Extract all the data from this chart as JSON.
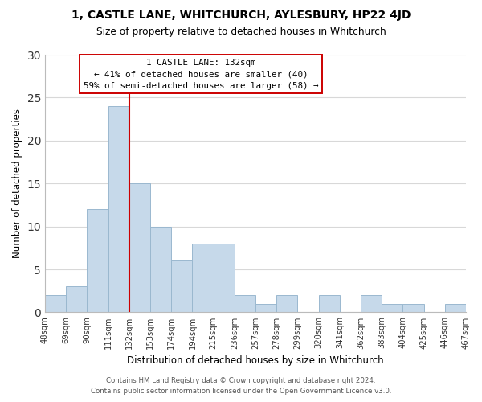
{
  "title_line1": "1, CASTLE LANE, WHITCHURCH, AYLESBURY, HP22 4JD",
  "title_line2": "Size of property relative to detached houses in Whitchurch",
  "xlabel": "Distribution of detached houses by size in Whitchurch",
  "ylabel": "Number of detached properties",
  "tick_labels": [
    "48sqm",
    "69sqm",
    "90sqm",
    "111sqm",
    "132sqm",
    "153sqm",
    "174sqm",
    "194sqm",
    "215sqm",
    "236sqm",
    "257sqm",
    "278sqm",
    "299sqm",
    "320sqm",
    "341sqm",
    "362sqm",
    "383sqm",
    "404sqm",
    "425sqm",
    "446sqm",
    "467sqm"
  ],
  "bar_values": [
    2,
    3,
    12,
    24,
    15,
    10,
    6,
    8,
    8,
    2,
    1,
    2,
    0,
    2,
    0,
    2,
    1,
    1,
    0,
    1
  ],
  "bar_color": "#c6d9ea",
  "bar_edge_color": "#9ab8cf",
  "marker_tick_index": 4,
  "marker_color": "#cc0000",
  "ylim": [
    0,
    30
  ],
  "yticks": [
    0,
    5,
    10,
    15,
    20,
    25,
    30
  ],
  "annotation_line1": "1 CASTLE LANE: 132sqm",
  "annotation_line2": "← 41% of detached houses are smaller (40)",
  "annotation_line3": "59% of semi-detached houses are larger (58) →",
  "footer_line1": "Contains HM Land Registry data © Crown copyright and database right 2024.",
  "footer_line2": "Contains public sector information licensed under the Open Government Licence v3.0.",
  "bg_color": "#ffffff",
  "grid_color": "#d8d8d8"
}
